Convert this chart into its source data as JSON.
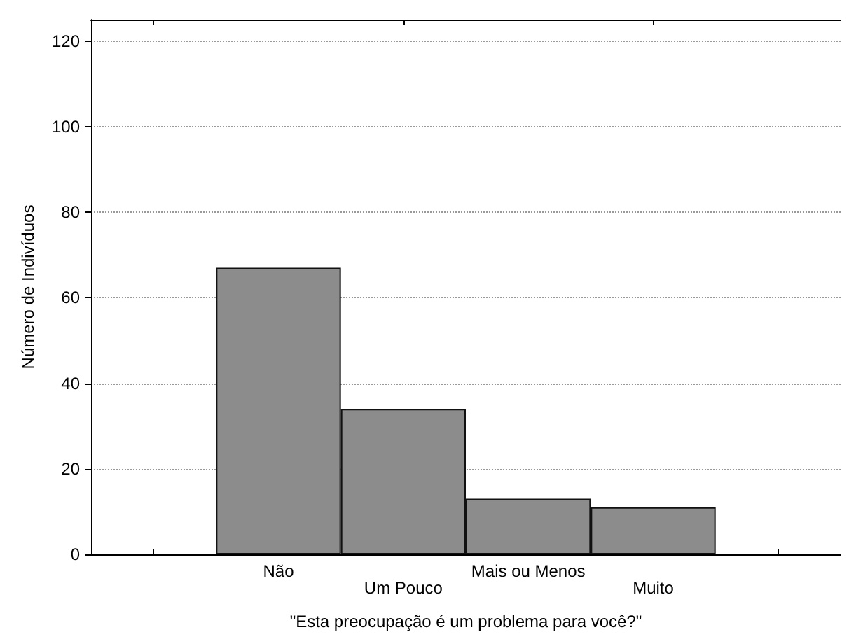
{
  "chart_data": {
    "type": "bar",
    "xlabel": "\"Esta preocupação é um problema para você?\"",
    "ylabel": "Número de Indivíduos",
    "categories": [
      null,
      "Não",
      "Um Pouco",
      "Mais ou Menos",
      "Muito",
      null
    ],
    "values": [
      null,
      67,
      34,
      13,
      11,
      null
    ],
    "color": "#8c8c8c",
    "ylim": [
      0,
      125
    ],
    "yticks": [
      0,
      20,
      40,
      60,
      80,
      100,
      120
    ],
    "grid": "y"
  }
}
